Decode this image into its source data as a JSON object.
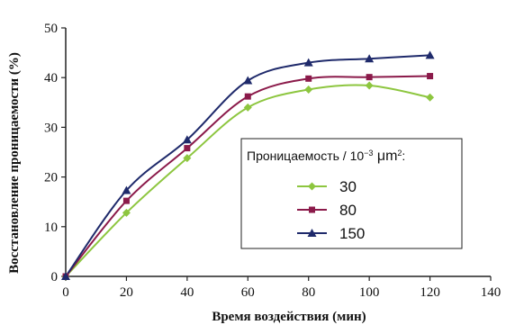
{
  "chart_data": {
    "type": "line",
    "xlabel": "Время воздействия (мин)",
    "ylabel": "Восстановление проницаемости (%)",
    "xlim": [
      0,
      140
    ],
    "ylim": [
      0,
      50
    ],
    "xticks": [
      "0",
      "20",
      "40",
      "60",
      "80",
      "100",
      "120",
      "140"
    ],
    "yticks": [
      "0",
      "10",
      "20",
      "30",
      "40",
      "50"
    ],
    "grid": false,
    "legend": {
      "title_prefix": "Проницаемость / 10",
      "title_exp1": "−3",
      "title_unit": " μm",
      "title_exp2": "2",
      "title_suffix": ":",
      "placement": "center-right"
    },
    "x": [
      0,
      20,
      40,
      60,
      80,
      100,
      120
    ],
    "series": [
      {
        "name": "30",
        "color": "#8dc63f",
        "marker": "diamond",
        "values": [
          0,
          12.8,
          23.8,
          34.0,
          37.6,
          38.4,
          36.0
        ]
      },
      {
        "name": "80",
        "color": "#8b1a4a",
        "marker": "square",
        "values": [
          0,
          15.2,
          25.8,
          36.2,
          39.8,
          40.1,
          40.3
        ]
      },
      {
        "name": "150",
        "color": "#1f2a6b",
        "marker": "triangle",
        "values": [
          0,
          17.3,
          27.5,
          39.4,
          43.0,
          43.8,
          44.5
        ]
      }
    ]
  }
}
